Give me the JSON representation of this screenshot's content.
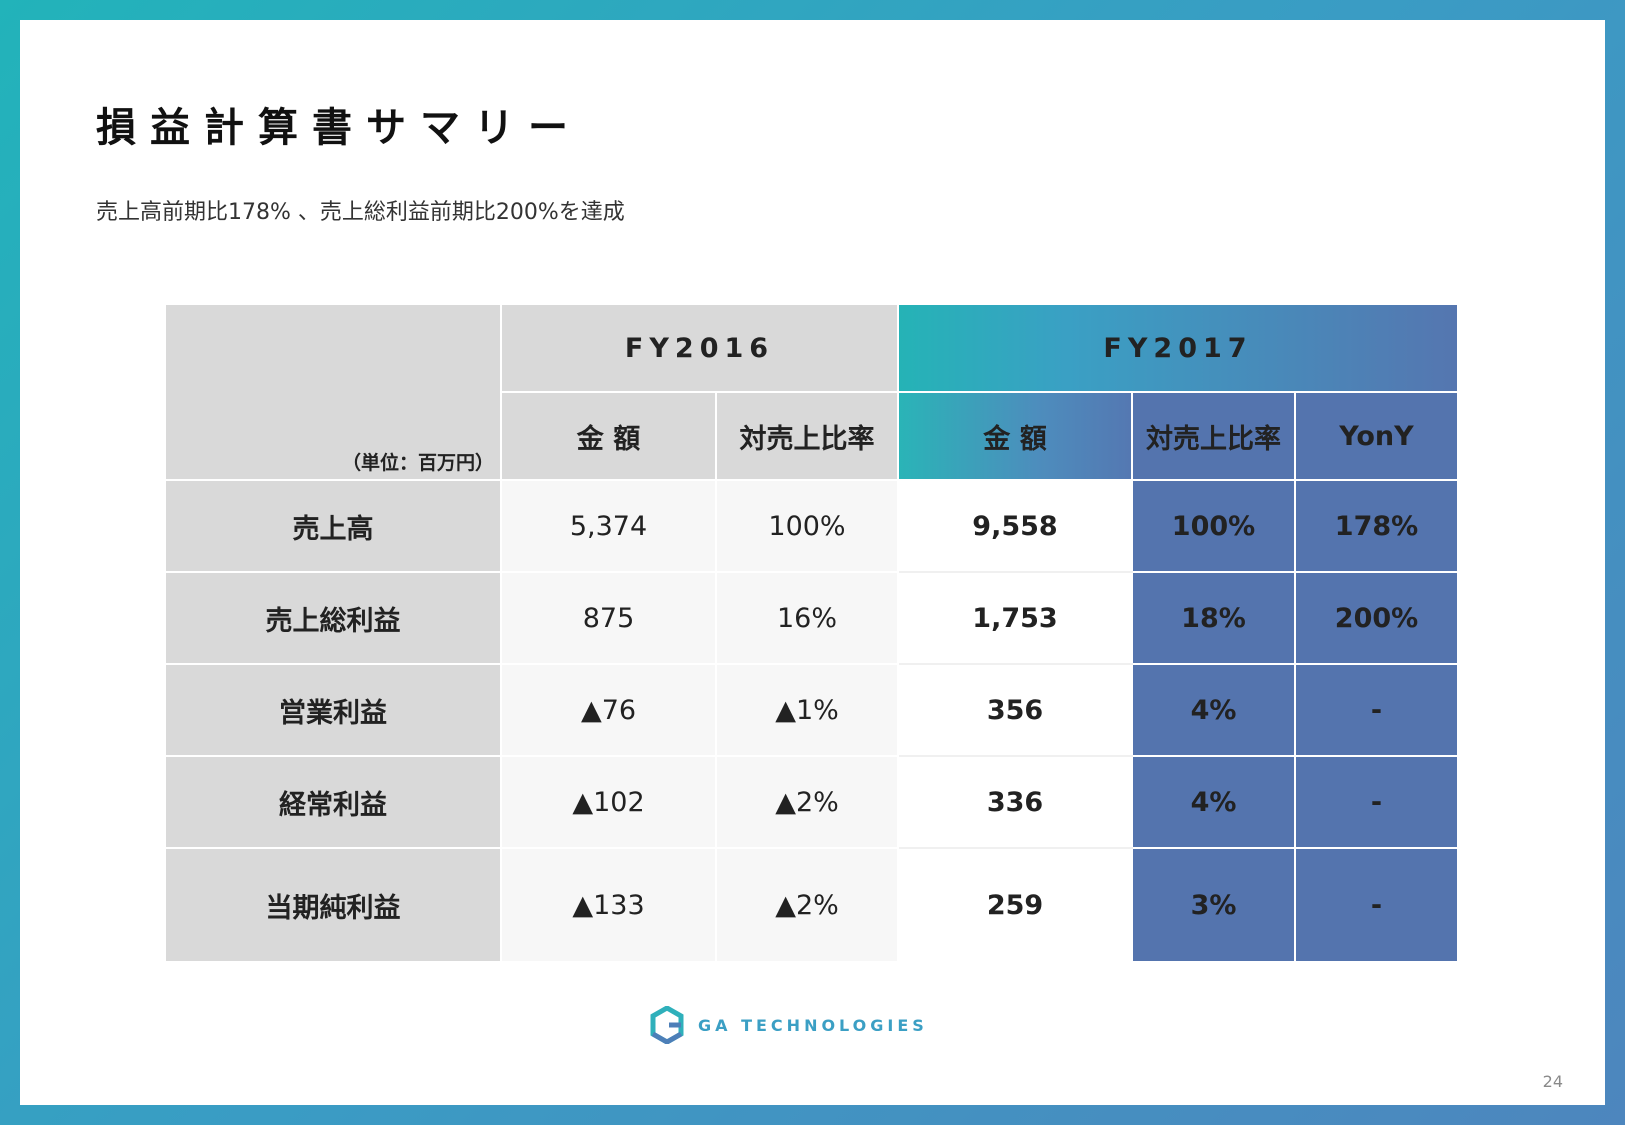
{
  "title": "損益計算書サマリー",
  "subtitle": "売上高前期比178% 、売上総利益前期比200%を達成",
  "table": {
    "unit_label": "（単位：百万円）",
    "fy2016": "FY2016",
    "fy2017": "FY2017",
    "col_amount": "金 額",
    "col_ratio": "対売上比率",
    "col_yony": "YonY",
    "rows": [
      {
        "label": "売上高",
        "fy16_amount": "5,374",
        "fy16_ratio": "100%",
        "fy17_amount": "9,558",
        "fy17_ratio": "100%",
        "yony": "178%"
      },
      {
        "label": "売上総利益",
        "fy16_amount": "875",
        "fy16_ratio": "16%",
        "fy17_amount": "1,753",
        "fy17_ratio": "18%",
        "yony": "200%"
      },
      {
        "label": "営業利益",
        "fy16_amount": "▲76",
        "fy16_ratio": "▲1%",
        "fy17_amount": "356",
        "fy17_ratio": "4%",
        "yony": "-"
      },
      {
        "label": "経常利益",
        "fy16_amount": "▲102",
        "fy16_ratio": "▲2%",
        "fy17_amount": "336",
        "fy17_ratio": "4%",
        "yony": "-"
      },
      {
        "label": "当期純利益",
        "fy16_amount": "▲133",
        "fy16_ratio": "▲2%",
        "fy17_amount": "259",
        "fy17_ratio": "3%",
        "yony": "-"
      }
    ]
  },
  "footer": {
    "logo_icon": "ga-hexagon-logo-icon",
    "logo_text": "GA TECHNOLOGIES",
    "page_number": "24"
  },
  "colors": {
    "frame_start": "#22b3ba",
    "frame_end": "#4d86be",
    "fy2017_blue": "#5474ae",
    "header_grey": "#d9d9d9"
  }
}
